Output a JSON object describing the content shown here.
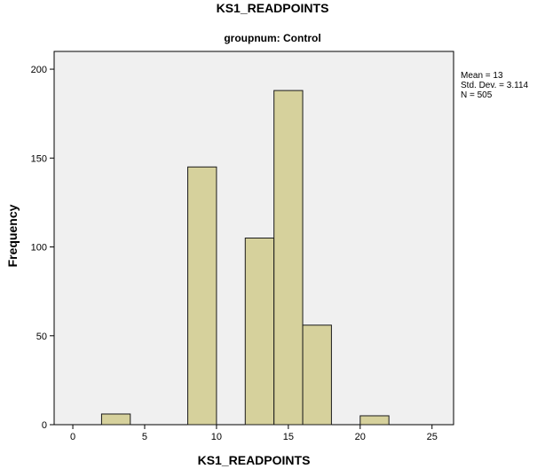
{
  "chart_data": {
    "type": "bar",
    "title": "KS1_READPOINTS",
    "subtitle": "groupnum: Control",
    "xlabel": "KS1_READPOINTS",
    "ylabel": "Frequency",
    "xlim": [
      -1.3,
      26.5
    ],
    "ylim": [
      0,
      210
    ],
    "xticks": [
      0,
      5,
      10,
      15,
      20,
      25
    ],
    "yticks": [
      0,
      50,
      100,
      150,
      200
    ],
    "grid": false,
    "bin_width": 2,
    "bins": [
      {
        "start": 2,
        "end": 4,
        "count": 6
      },
      {
        "start": 8,
        "end": 10,
        "count": 145
      },
      {
        "start": 12,
        "end": 14,
        "count": 105
      },
      {
        "start": 14,
        "end": 16,
        "count": 188
      },
      {
        "start": 16,
        "end": 18,
        "count": 56
      },
      {
        "start": 20,
        "end": 22,
        "count": 5
      }
    ],
    "stats": {
      "mean": "Mean = 13",
      "std_dev": "Std. Dev. = 3.114",
      "n": "N = 505"
    },
    "colors": {
      "bar_fill": "#d6d19c",
      "bar_stroke": "#1a1a1a",
      "plot_background": "#f0f0f0"
    }
  }
}
